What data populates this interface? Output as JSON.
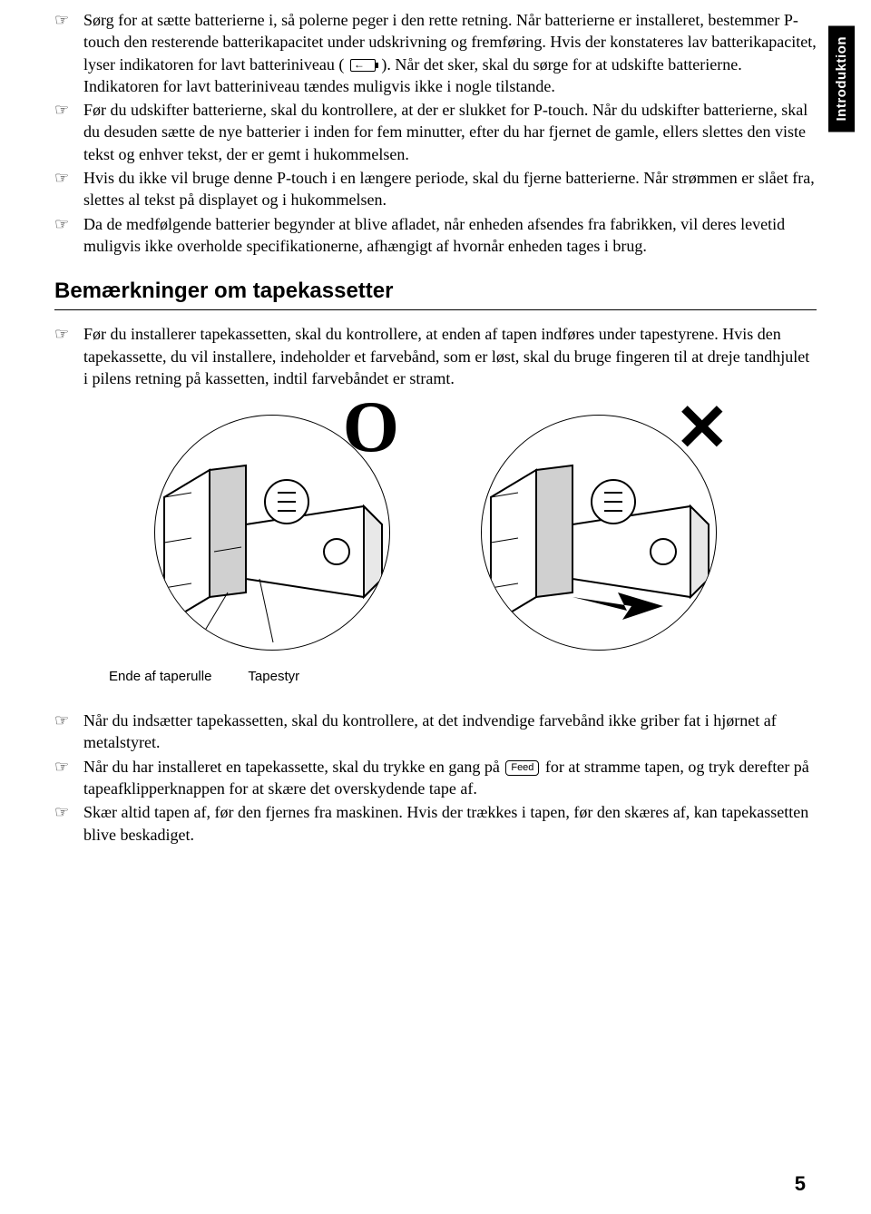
{
  "sideTab": "Introduktion",
  "topBullets": [
    "Sørg for at sætte batterierne i, så polerne peger i den rette retning. Når batterierne er installeret, bestemmer P-touch den resterende batterikapacitet under udskrivning og fremføring. Hvis der konstateres lav batterikapacitet, lyser indikatoren for lavt batteriniveau ( __BATTERY__ ). Når det sker, skal du sørge for at udskifte batterierne. Indikatoren for lavt batteriniveau tændes muligvis ikke i nogle tilstande.",
    "Før du udskifter batterierne, skal du kontrollere, at der er slukket for P-touch. Når du udskifter batterierne, skal du desuden sætte de nye batterier i inden for fem minutter, efter du har fjernet de gamle, ellers slettes den viste tekst og enhver tekst, der er gemt i hukommelsen.",
    "Hvis du ikke vil bruge denne P-touch i en længere periode, skal du fjerne batterierne. Når strømmen er slået fra, slettes al tekst på displayet og i hukommelsen.",
    "Da de medfølgende batterier begynder at blive afladet, når enheden afsendes fra fabrikken, vil deres levetid muligvis ikke overholde specifikationerne, afhængigt af hvornår enheden tages i brug."
  ],
  "sectionHeading": "Bemærkninger om tapekassetter",
  "midBullets": [
    "Før du installerer tapekassetten, skal du kontrollere, at enden af tapen indføres under tapestyrene. Hvis den tapekassette, du vil installere, indeholder et farvebånd, som er løst, skal du bruge fingeren til at dreje tandhjulet i pilens retning på kassetten, indtil farvebåndet er stramt."
  ],
  "diagramLabels": {
    "left": "Ende af taperulle",
    "right": "Tapestyr"
  },
  "markO": "O",
  "markX": "✕",
  "feedLabel": "Feed",
  "bottomBullets": [
    "Når du indsætter tapekassetten, skal du kontrollere, at det indvendige farvebånd ikke griber fat i hjørnet af metalstyret.",
    "Når du har installeret en tapekassette, skal du trykke en gang på __FEED__ for at stramme tapen, og tryk derefter på tapeafklipperknappen for at skære det overskydende tape af.",
    "Skær altid tapen af, før den fjernes fra maskinen. Hvis der trækkes i tapen, før den skæres af, kan tapekassetten blive beskadiget."
  ],
  "pageNumber": "5"
}
